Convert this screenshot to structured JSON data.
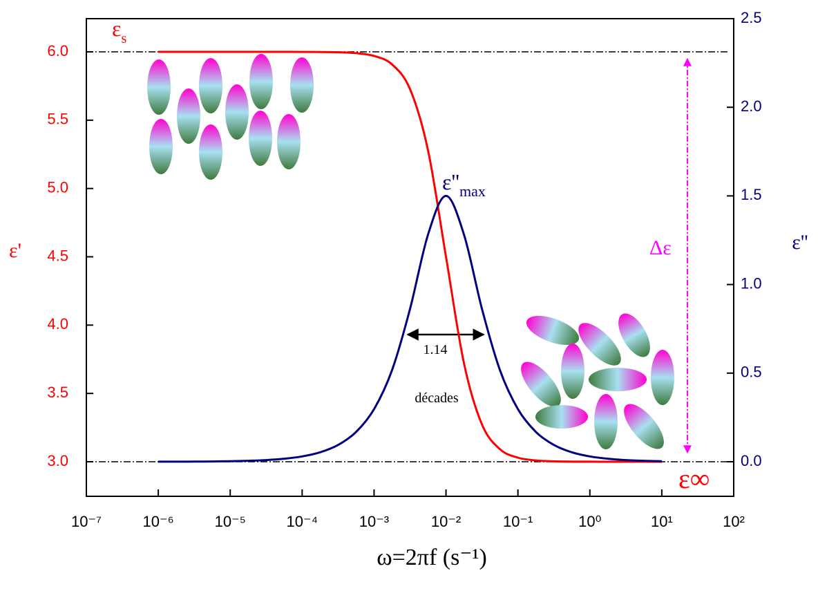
{
  "chart_data": {
    "type": "line",
    "xlabel": "ω=2πf (s⁻¹)",
    "ylabel": "ε'",
    "y2label": "ε''",
    "log_x": true,
    "xlim": [
      1e-07,
      100
    ],
    "xticks": [
      {
        "value": 1e-07,
        "label": "10⁻⁷"
      },
      {
        "value": 1e-06,
        "label": "10⁻⁶"
      },
      {
        "value": 1e-05,
        "label": "10⁻⁵"
      },
      {
        "value": 0.0001,
        "label": "10⁻⁴"
      },
      {
        "value": 0.001,
        "label": "10⁻³"
      },
      {
        "value": 0.01,
        "label": "10⁻²"
      },
      {
        "value": 0.1,
        "label": "10⁻¹"
      },
      {
        "value": 1,
        "label": "10⁰"
      },
      {
        "value": 10,
        "label": "10¹"
      },
      {
        "value": 100,
        "label": "10²"
      }
    ],
    "ylim": [
      2.747,
      6.243
    ],
    "yticks": [
      {
        "value": 3,
        "label": "3.0"
      },
      {
        "value": 3.5,
        "label": "3.5"
      },
      {
        "value": 4,
        "label": "4.0"
      },
      {
        "value": 4.5,
        "label": "4.5"
      },
      {
        "value": 5,
        "label": "5.0"
      },
      {
        "value": 5.5,
        "label": "5.5"
      },
      {
        "value": 6,
        "label": "6.0"
      }
    ],
    "y2lim": [
      -0.195,
      2.5
    ],
    "y2ticks": [
      {
        "value": 0,
        "label": "0.0"
      },
      {
        "value": 0.5,
        "label": "0.5"
      },
      {
        "value": 1,
        "label": "1.0"
      },
      {
        "value": 1.5,
        "label": "1.5"
      },
      {
        "value": 2,
        "label": "2.0"
      },
      {
        "value": 2.5,
        "label": "2.5"
      }
    ],
    "x": [
      1e-06,
      1.778e-06,
      3.162e-06,
      5.623e-06,
      1e-05,
      1.778e-05,
      3.162e-05,
      5.623e-05,
      0.0001,
      0.0001778,
      0.0003162,
      0.0005623,
      0.001,
      0.001778,
      0.003162,
      0.005623,
      0.01,
      0.01778,
      0.03162,
      0.05623,
      0.1,
      0.1778,
      0.3162,
      0.5623,
      1,
      1.778,
      3.162,
      5.623,
      10
    ],
    "series": [
      {
        "color": "#ff0000",
        "axis": "y",
        "values": [
          6,
          6,
          6,
          6,
          6,
          6,
          6,
          6,
          5.9997,
          5.9991,
          5.997,
          5.9905,
          5.9703,
          5.908,
          5.7273,
          5.2793,
          4.5,
          3.7208,
          3.2727,
          3.092,
          3.0297,
          3.0095,
          3.003,
          3.0009,
          3.0003,
          3.0001,
          3,
          3,
          3
        ]
      },
      {
        "color": "#000080",
        "axis": "y2",
        "values": [
          0.0003,
          0.0005,
          0.0009,
          0.0017,
          0.003,
          0.0053,
          0.0095,
          0.0169,
          0.03,
          0.0533,
          0.0948,
          0.1682,
          0.297,
          0.517,
          0.8624,
          1.2816,
          1.5,
          1.2816,
          0.8624,
          0.517,
          0.297,
          0.1682,
          0.0948,
          0.0533,
          0.03,
          0.0169,
          0.0095,
          0.0053,
          0.003
        ]
      }
    ],
    "annotations": [
      {
        "text": "ε",
        "sub": "s"
      },
      {
        "text": "ε''",
        "sub": "max"
      },
      {
        "text": "Δε"
      },
      {
        "text": "1.14"
      },
      {
        "text": "décades"
      },
      {
        "text": "ε∞"
      }
    ]
  }
}
